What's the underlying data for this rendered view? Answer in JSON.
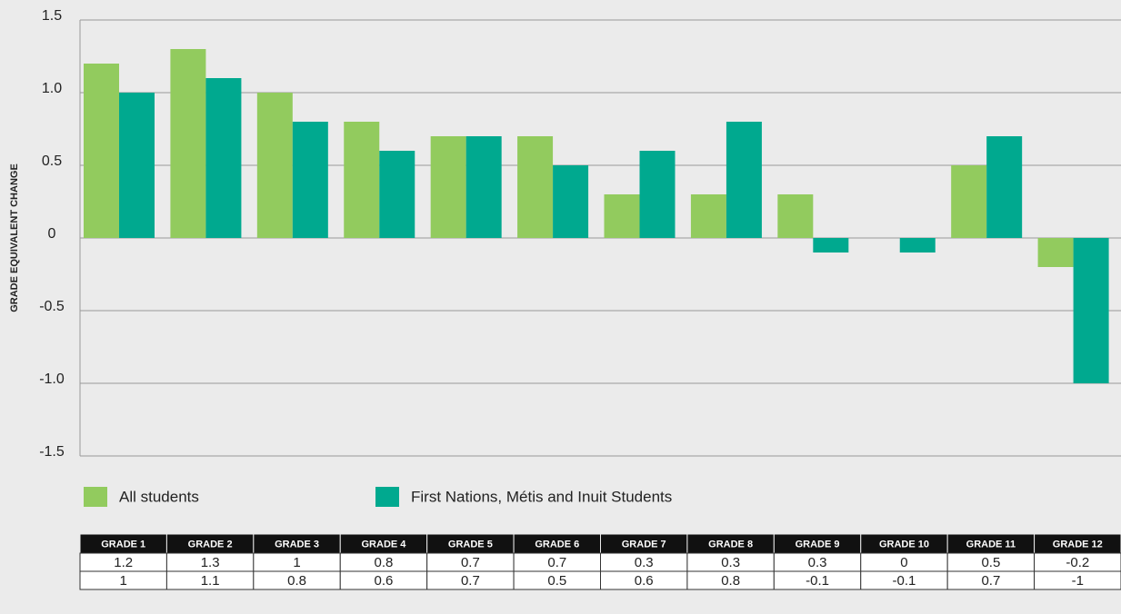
{
  "chart_data": {
    "type": "bar",
    "ylabel": "GRADE EQUIVALENT CHANGE",
    "categories": [
      "GRADE 1",
      "GRADE 2",
      "GRADE 3",
      "GRADE 4",
      "GRADE 5",
      "GRADE 6",
      "GRADE 7",
      "GRADE 8",
      "GRADE 9",
      "GRADE 10",
      "GRADE 11",
      "GRADE 12"
    ],
    "series": [
      {
        "name": "All students",
        "color": "#92cb5e",
        "values": [
          1.2,
          1.3,
          1,
          0.8,
          0.7,
          0.7,
          0.3,
          0.3,
          0.3,
          0,
          0.5,
          -0.2
        ]
      },
      {
        "name": "First Nations, Métis and Inuit Students",
        "color": "#00a98f",
        "values": [
          1,
          1.1,
          0.8,
          0.6,
          0.7,
          0.5,
          0.6,
          0.8,
          -0.1,
          -0.1,
          0.7,
          -1
        ]
      }
    ],
    "ylim": [
      -1.5,
      1.5
    ],
    "yticks": [
      -1.5,
      {
        "value": -1,
        "label": "-1.0"
      },
      -0.5,
      0,
      0.5,
      {
        "value": 1,
        "label": "1.0"
      },
      1.5
    ],
    "grid": true,
    "legend": "bottom"
  }
}
